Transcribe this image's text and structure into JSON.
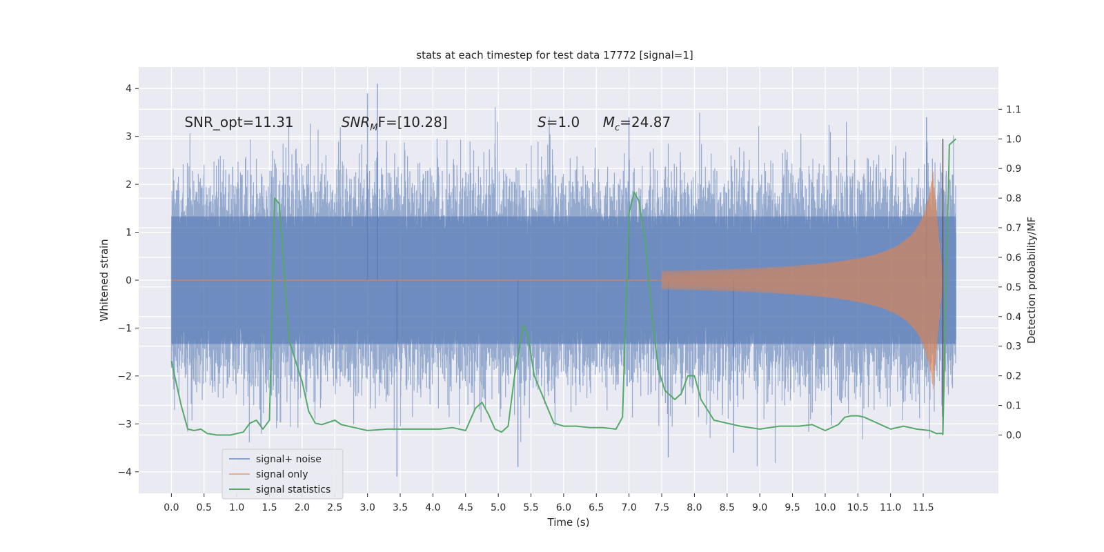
{
  "chart_data": {
    "type": "line",
    "title": "stats at each timestep for test data 17772 [signal=1]",
    "xlabel": "Time (s)",
    "ylabel": "Whitened strain",
    "y2label": "Detection probability/MF",
    "xlim": [
      -0.5,
      12.65
    ],
    "ylim": [
      -4.45,
      4.45
    ],
    "y2lim": [
      -0.197,
      1.243
    ],
    "x_ticks": [
      "0.0",
      "0.5",
      "1.0",
      "1.5",
      "2.0",
      "2.5",
      "3.0",
      "3.5",
      "4.0",
      "4.5",
      "5.0",
      "5.5",
      "6.0",
      "6.5",
      "7.0",
      "7.5",
      "8.0",
      "8.5",
      "9.0",
      "9.5",
      "10.0",
      "10.5",
      "11.0",
      "11.5"
    ],
    "y_ticks": [
      "−4",
      "−3",
      "−2",
      "−1",
      "0",
      "1",
      "2",
      "3",
      "4"
    ],
    "y2_ticks": [
      "0.0",
      "0.1",
      "0.2",
      "0.3",
      "0.4",
      "0.5",
      "0.6",
      "0.7",
      "0.8",
      "0.9",
      "1.0",
      "1.1"
    ],
    "grid": true,
    "legend_position": "lower-left",
    "annotations": [
      {
        "id": "snr-opt",
        "text": "SNR_opt=11.31",
        "x": 0.2,
        "y": 3.3
      },
      {
        "id": "snr-mf",
        "base": "SNR",
        "sub": "M",
        "rest": "F=[10.28]",
        "x": 2.6,
        "y": 3.3
      },
      {
        "id": "s-value",
        "base": "S",
        "rest": "=1.0",
        "x": 5.6,
        "y": 3.3
      },
      {
        "id": "mc-value",
        "base": "M",
        "sub": "c",
        "rest": "=24.87",
        "x": 6.6,
        "y": 3.3
      }
    ],
    "vertical_line_x": 11.8,
    "series": [
      {
        "name": "signal+ noise",
        "color": "#4c72b0",
        "axis": "left",
        "style": "noise",
        "x_start": 0.0,
        "x_end": 12.0,
        "typical_range": [
          -1.9,
          1.9
        ],
        "max_value": 4.1,
        "min_value": -4.1
      },
      {
        "name": "signal only",
        "color": "#dd8452",
        "axis": "left",
        "style": "chirp",
        "x_start": 7.5,
        "x_peak": 11.65,
        "x_end": 11.8,
        "peak_amplitude": 2.3
      },
      {
        "name": "signal statistics",
        "color": "#55a868",
        "axis": "right",
        "x": [
          0.0,
          0.15,
          0.25,
          0.35,
          0.45,
          0.55,
          0.7,
          0.9,
          1.1,
          1.2,
          1.3,
          1.4,
          1.5,
          1.58,
          1.65,
          1.8,
          1.9,
          2.0,
          2.1,
          2.2,
          2.3,
          2.5,
          2.6,
          2.8,
          3.0,
          3.3,
          3.6,
          3.9,
          4.1,
          4.3,
          4.5,
          4.65,
          4.75,
          4.85,
          4.95,
          5.05,
          5.15,
          5.25,
          5.38,
          5.45,
          5.55,
          5.7,
          5.85,
          6.0,
          6.2,
          6.4,
          6.6,
          6.8,
          6.9,
          7.0,
          7.08,
          7.15,
          7.25,
          7.35,
          7.45,
          7.55,
          7.7,
          7.8,
          7.9,
          8.0,
          8.1,
          8.3,
          8.5,
          8.7,
          9.0,
          9.3,
          9.6,
          9.8,
          10.0,
          10.2,
          10.3,
          10.4,
          10.5,
          10.6,
          10.8,
          11.0,
          11.2,
          11.4,
          11.6,
          11.7,
          11.8,
          11.9,
          12.0
        ],
        "values": [
          0.25,
          0.1,
          0.02,
          0.015,
          0.02,
          0.005,
          0.0,
          0.0,
          0.01,
          0.04,
          0.05,
          0.02,
          0.05,
          0.8,
          0.78,
          0.32,
          0.25,
          0.18,
          0.08,
          0.04,
          0.035,
          0.05,
          0.035,
          0.025,
          0.015,
          0.02,
          0.02,
          0.02,
          0.02,
          0.025,
          0.015,
          0.09,
          0.11,
          0.07,
          0.02,
          0.01,
          0.03,
          0.2,
          0.37,
          0.34,
          0.2,
          0.12,
          0.04,
          0.03,
          0.03,
          0.025,
          0.025,
          0.02,
          0.06,
          0.75,
          0.82,
          0.79,
          0.65,
          0.4,
          0.22,
          0.15,
          0.12,
          0.14,
          0.2,
          0.2,
          0.12,
          0.05,
          0.04,
          0.03,
          0.02,
          0.03,
          0.03,
          0.035,
          0.015,
          0.035,
          0.06,
          0.065,
          0.065,
          0.06,
          0.04,
          0.02,
          0.03,
          0.02,
          0.015,
          0.005,
          0.005,
          0.98,
          1.0
        ]
      }
    ]
  }
}
